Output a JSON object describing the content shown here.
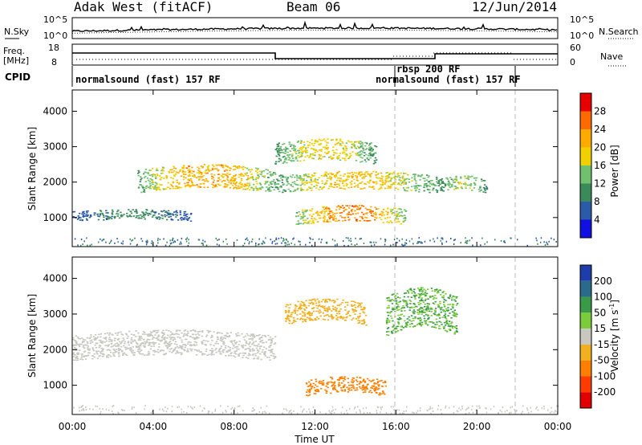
{
  "header": {
    "station": "Adak West (fitACF)",
    "beam": "Beam 06",
    "date": "12/Jun/2014"
  },
  "noise_panel": {
    "left_label": "N.Sky",
    "right_label": "N.Search",
    "left_ticks": [
      "10^5",
      "10^0"
    ],
    "right_ticks": [
      "10^5",
      "10^0"
    ]
  },
  "freq_panel": {
    "left_label_1": "Freq.",
    "left_label_2": "[MHz]",
    "right_label": "Nave",
    "left_ticks": [
      "18",
      "8"
    ],
    "right_ticks": [
      "60",
      "0"
    ]
  },
  "cpid_panel": {
    "label": "CPID",
    "segments": [
      {
        "text": "normalsound (fast) 157 RF",
        "start_hour": 0
      },
      {
        "text": "rbsp 200 RF",
        "start_hour": 16
      },
      {
        "text": "normalsound (fast) 157 RF",
        "start_hour": 16
      }
    ],
    "dividers_hour": [
      16,
      21.75
    ]
  },
  "power_colorbar": {
    "label": "Power [dB]",
    "ticks": [
      "28",
      "24",
      "20",
      "16",
      "12",
      "8",
      "4"
    ],
    "colors": [
      "#e60000",
      "#ff6a00",
      "#ffaa00",
      "#f0d000",
      "#70c070",
      "#3a8a5a",
      "#2a5aa8",
      "#1010e0"
    ]
  },
  "velocity_colorbar": {
    "label_main": "Velocity [m s",
    "label_sup": "-1",
    "label_end": "]",
    "ticks": [
      "200",
      "100",
      "50",
      "15",
      "-15",
      "-50",
      "-100",
      "-200"
    ],
    "colors": [
      "#1e3caa",
      "#2a6a8a",
      "#3a9a4a",
      "#7acc3a",
      "#c8c8c0",
      "#f0b020",
      "#ff8000",
      "#ff3c00",
      "#e00000"
    ]
  },
  "axes": {
    "ylabel": "Slant Range [km]",
    "xlabel": "Time UT",
    "xticks": [
      "00:00",
      "04:00",
      "08:00",
      "12:00",
      "16:00",
      "20:00",
      "00:00"
    ],
    "yticks": [
      "4000",
      "3000",
      "2000",
      "1000"
    ]
  },
  "chart_data": [
    {
      "type": "heatmap",
      "title": "Power [dB]",
      "xlabel": "Time UT",
      "ylabel": "Slant Range [km]",
      "xlim_hours": [
        0,
        24
      ],
      "ylim_km": [
        180,
        4600
      ],
      "ytick_values_km": [
        1000,
        2000,
        3000,
        4000
      ],
      "xtick_values_hours": [
        0,
        4,
        8,
        12,
        16,
        20,
        24
      ],
      "color_range_db": [
        0,
        32
      ],
      "echo_bands": [
        {
          "name": "low-a",
          "t0": 0,
          "t1": 6,
          "r0": 900,
          "r1": 1180,
          "peak_db": 10
        },
        {
          "name": "mid-a",
          "t0": 3.2,
          "t1": 10,
          "r0": 1700,
          "r1": 2350,
          "peak_db": 27
        },
        {
          "name": "mid-b",
          "t0": 10,
          "t1": 18,
          "r0": 1700,
          "r1": 2200,
          "peak_db": 24
        },
        {
          "name": "upper",
          "t0": 10,
          "t1": 15,
          "r0": 2500,
          "r1": 3100,
          "peak_db": 22
        },
        {
          "name": "lower",
          "t0": 11,
          "t1": 16.5,
          "r0": 800,
          "r1": 1250,
          "peak_db": 30
        },
        {
          "name": "late",
          "t0": 18,
          "t1": 20.5,
          "r0": 1700,
          "r1": 2100,
          "peak_db": 18
        }
      ]
    },
    {
      "type": "heatmap",
      "title": "Velocity [m s-1]",
      "xlabel": "Time UT",
      "ylabel": "Slant Range [km]",
      "xlim_hours": [
        0,
        24
      ],
      "ylim_km": [
        180,
        4600
      ],
      "ytick_values_km": [
        1000,
        2000,
        3000,
        4000
      ],
      "xtick_values_hours": [
        0,
        4,
        8,
        12,
        16,
        20,
        24
      ],
      "color_range_ms": [
        -200,
        200
      ],
      "echo_bands": [
        {
          "name": "ground-scatter",
          "t0": 0,
          "t1": 10,
          "r0": 1700,
          "r1": 2400,
          "velocity": 0
        },
        {
          "name": "upper-orange",
          "t0": 10.5,
          "t1": 14.5,
          "r0": 2700,
          "r1": 3300,
          "velocity": -40
        },
        {
          "name": "lower-orange",
          "t0": 11.5,
          "t1": 15.5,
          "r0": 700,
          "r1": 1150,
          "velocity": -60
        },
        {
          "name": "green-streak",
          "t0": 15.5,
          "t1": 19,
          "r0": 2400,
          "r1": 3500,
          "velocity": 30
        }
      ]
    }
  ]
}
